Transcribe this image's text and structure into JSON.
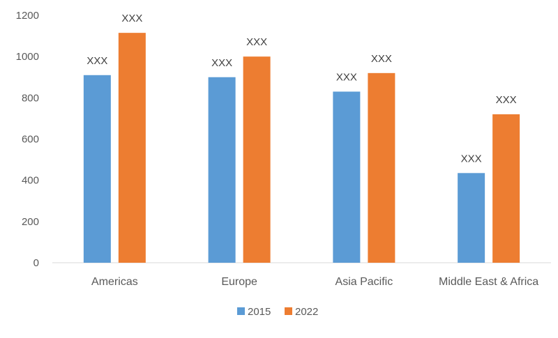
{
  "chart_data": {
    "type": "bar",
    "categories": [
      "Americas",
      "Europe",
      "Asia Pacific",
      "Middle East & Africa"
    ],
    "series": [
      {
        "name": "2015",
        "color": "#5b9bd5",
        "values": [
          910,
          900,
          830,
          435
        ],
        "labels": [
          "XXX",
          "XXX",
          "XXX",
          "XXX"
        ]
      },
      {
        "name": "2022",
        "color": "#ed7d31",
        "values": [
          1115,
          1000,
          920,
          720
        ],
        "labels": [
          "XXX",
          "XXX",
          "XXX",
          "XXX"
        ]
      }
    ],
    "y_ticks": [
      "0",
      "200",
      "400",
      "600",
      "800",
      "1000",
      "1200"
    ],
    "ylim": [
      0,
      1200
    ],
    "grid": false,
    "legend_position": "bottom"
  }
}
